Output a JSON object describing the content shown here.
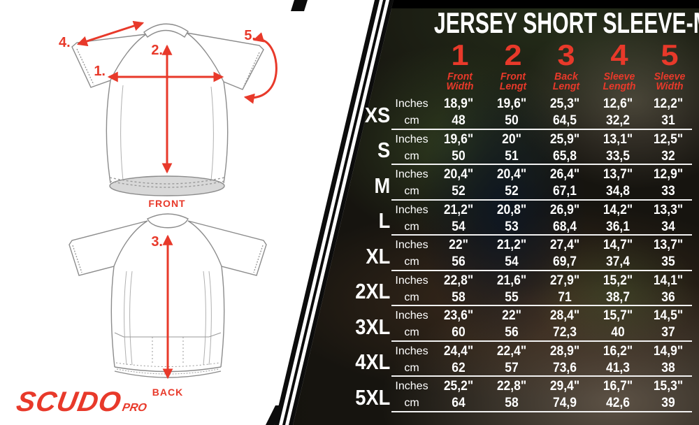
{
  "colors": {
    "accent": "#e8392a",
    "table_text": "#ffffff",
    "divider": "#0c0c0c",
    "panel_bg": "#ffffff"
  },
  "brand": {
    "logo_text": "SCUDO",
    "logo_suffix": "PRO"
  },
  "diagram": {
    "front_caption": "FRONT",
    "back_caption": "BACK",
    "markers": {
      "m1": "1.",
      "m2": "2.",
      "m3": "3.",
      "m4": "4.",
      "m5": "5."
    }
  },
  "chart_data": {
    "type": "table",
    "title": "JERSEY SHORT SLEEVE-MAN",
    "unit_inches": "Inches",
    "unit_cm": "cm",
    "columns": [
      {
        "num": "1",
        "lines": [
          "Front",
          "Width"
        ]
      },
      {
        "num": "2",
        "lines": [
          "Front",
          "Lengt"
        ]
      },
      {
        "num": "3",
        "lines": [
          "Back",
          "Lengt"
        ]
      },
      {
        "num": "4",
        "lines": [
          "Sleeve",
          "Length"
        ]
      },
      {
        "num": "5",
        "lines": [
          "Sleeve",
          "Width"
        ]
      }
    ],
    "rows": [
      {
        "size": "XS",
        "inches": [
          "18,9\"",
          "19,6\"",
          "25,3\"",
          "12,6\"",
          "12,2\""
        ],
        "cm": [
          "48",
          "50",
          "64,5",
          "32,2",
          "31"
        ]
      },
      {
        "size": "S",
        "inches": [
          "19,6\"",
          "20\"",
          "25,9\"",
          "13,1\"",
          "12,5\""
        ],
        "cm": [
          "50",
          "51",
          "65,8",
          "33,5",
          "32"
        ]
      },
      {
        "size": "M",
        "inches": [
          "20,4\"",
          "20,4\"",
          "26,4\"",
          "13,7\"",
          "12,9\""
        ],
        "cm": [
          "52",
          "52",
          "67,1",
          "34,8",
          "33"
        ]
      },
      {
        "size": "L",
        "inches": [
          "21,2\"",
          "20,8\"",
          "26,9\"",
          "14,2\"",
          "13,3\""
        ],
        "cm": [
          "54",
          "53",
          "68,4",
          "36,1",
          "34"
        ]
      },
      {
        "size": "XL",
        "inches": [
          "22\"",
          "21,2\"",
          "27,4\"",
          "14,7\"",
          "13,7\""
        ],
        "cm": [
          "56",
          "54",
          "69,7",
          "37,4",
          "35"
        ]
      },
      {
        "size": "2XL",
        "inches": [
          "22,8\"",
          "21,6\"",
          "27,9\"",
          "15,2\"",
          "14,1\""
        ],
        "cm": [
          "58",
          "55",
          "71",
          "38,7",
          "36"
        ]
      },
      {
        "size": "3XL",
        "inches": [
          "23,6\"",
          "22\"",
          "28,4\"",
          "15,7\"",
          "14,5\""
        ],
        "cm": [
          "60",
          "56",
          "72,3",
          "40",
          "37"
        ]
      },
      {
        "size": "4XL",
        "inches": [
          "24,4\"",
          "22,4\"",
          "28,9\"",
          "16,2\"",
          "14,9\""
        ],
        "cm": [
          "62",
          "57",
          "73,6",
          "41,3",
          "38"
        ]
      },
      {
        "size": "5XL",
        "inches": [
          "25,2\"",
          "22,8\"",
          "29,4\"",
          "16,7\"",
          "15,3\""
        ],
        "cm": [
          "64",
          "58",
          "74,9",
          "42,6",
          "39"
        ]
      }
    ]
  }
}
